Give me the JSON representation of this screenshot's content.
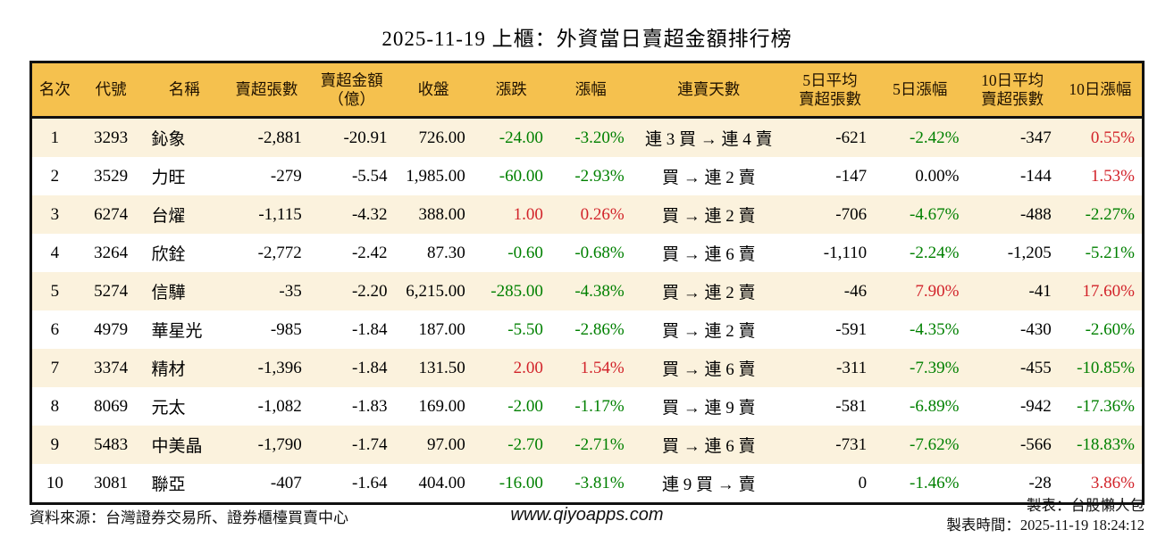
{
  "title": "2025-11-19 上櫃：外資當日賣超金額排行榜",
  "colors": {
    "up": "#d2232a",
    "down": "#008000",
    "header_bg": "#f5c14e",
    "row_alt_bg": "#fbf2dd",
    "border": "#111111"
  },
  "chart_data": {
    "type": "table",
    "title": "2025-11-19 上櫃：外資當日賣超金額排行榜",
    "columns": [
      {
        "key": "rank",
        "label": "名次",
        "align": "center"
      },
      {
        "key": "code",
        "label": "代號",
        "align": "center"
      },
      {
        "key": "name",
        "label": "名稱",
        "align": "left"
      },
      {
        "key": "sell_volume",
        "label": "賣超張數",
        "align": "right"
      },
      {
        "key": "sell_amount",
        "label": "賣超金額\n（億）",
        "align": "right"
      },
      {
        "key": "close",
        "label": "收盤",
        "align": "right"
      },
      {
        "key": "change",
        "label": "漲跌",
        "align": "right",
        "color_key": "change_color"
      },
      {
        "key": "change_pct",
        "label": "漲幅",
        "align": "right",
        "color_key": "change_pct_color"
      },
      {
        "key": "streak",
        "label": "連賣天數",
        "align": "center"
      },
      {
        "key": "avg5",
        "label": "5日平均\n賣超張數",
        "align": "right"
      },
      {
        "key": "pct5",
        "label": "5日漲幅",
        "align": "right",
        "color_key": "pct5_color"
      },
      {
        "key": "avg10",
        "label": "10日平均\n賣超張數",
        "align": "right"
      },
      {
        "key": "pct10",
        "label": "10日漲幅",
        "align": "right",
        "color_key": "pct10_color"
      }
    ],
    "rows": [
      {
        "rank": "1",
        "code": "3293",
        "name": "鈊象",
        "sell_volume": "-2,881",
        "sell_amount": "-20.91",
        "close": "726.00",
        "change": "-24.00",
        "change_color": "down",
        "change_pct": "-3.20%",
        "change_pct_color": "down",
        "streak": "連 3 買 → 連 4 賣",
        "avg5": "-621",
        "pct5": "-2.42%",
        "pct5_color": "down",
        "avg10": "-347",
        "pct10": "0.55%",
        "pct10_color": "up"
      },
      {
        "rank": "2",
        "code": "3529",
        "name": "力旺",
        "sell_volume": "-279",
        "sell_amount": "-5.54",
        "close": "1,985.00",
        "change": "-60.00",
        "change_color": "down",
        "change_pct": "-2.93%",
        "change_pct_color": "down",
        "streak": "買 → 連 2 賣",
        "avg5": "-147",
        "pct5": "0.00%",
        "pct5_color": "flat",
        "avg10": "-144",
        "pct10": "1.53%",
        "pct10_color": "up"
      },
      {
        "rank": "3",
        "code": "6274",
        "name": "台燿",
        "sell_volume": "-1,115",
        "sell_amount": "-4.32",
        "close": "388.00",
        "change": "1.00",
        "change_color": "up",
        "change_pct": "0.26%",
        "change_pct_color": "up",
        "streak": "買 → 連 2 賣",
        "avg5": "-706",
        "pct5": "-4.67%",
        "pct5_color": "down",
        "avg10": "-488",
        "pct10": "-2.27%",
        "pct10_color": "down"
      },
      {
        "rank": "4",
        "code": "3264",
        "name": "欣銓",
        "sell_volume": "-2,772",
        "sell_amount": "-2.42",
        "close": "87.30",
        "change": "-0.60",
        "change_color": "down",
        "change_pct": "-0.68%",
        "change_pct_color": "down",
        "streak": "買 → 連 6 賣",
        "avg5": "-1,110",
        "pct5": "-2.24%",
        "pct5_color": "down",
        "avg10": "-1,205",
        "pct10": "-5.21%",
        "pct10_color": "down"
      },
      {
        "rank": "5",
        "code": "5274",
        "name": "信驊",
        "sell_volume": "-35",
        "sell_amount": "-2.20",
        "close": "6,215.00",
        "change": "-285.00",
        "change_color": "down",
        "change_pct": "-4.38%",
        "change_pct_color": "down",
        "streak": "買 → 連 2 賣",
        "avg5": "-46",
        "pct5": "7.90%",
        "pct5_color": "up",
        "avg10": "-41",
        "pct10": "17.60%",
        "pct10_color": "up"
      },
      {
        "rank": "6",
        "code": "4979",
        "name": "華星光",
        "sell_volume": "-985",
        "sell_amount": "-1.84",
        "close": "187.00",
        "change": "-5.50",
        "change_color": "down",
        "change_pct": "-2.86%",
        "change_pct_color": "down",
        "streak": "買 → 連 2 賣",
        "avg5": "-591",
        "pct5": "-4.35%",
        "pct5_color": "down",
        "avg10": "-430",
        "pct10": "-2.60%",
        "pct10_color": "down"
      },
      {
        "rank": "7",
        "code": "3374",
        "name": "精材",
        "sell_volume": "-1,396",
        "sell_amount": "-1.84",
        "close": "131.50",
        "change": "2.00",
        "change_color": "up",
        "change_pct": "1.54%",
        "change_pct_color": "up",
        "streak": "買 → 連 6 賣",
        "avg5": "-311",
        "pct5": "-7.39%",
        "pct5_color": "down",
        "avg10": "-455",
        "pct10": "-10.85%",
        "pct10_color": "down"
      },
      {
        "rank": "8",
        "code": "8069",
        "name": "元太",
        "sell_volume": "-1,082",
        "sell_amount": "-1.83",
        "close": "169.00",
        "change": "-2.00",
        "change_color": "down",
        "change_pct": "-1.17%",
        "change_pct_color": "down",
        "streak": "買 → 連 9 賣",
        "avg5": "-581",
        "pct5": "-6.89%",
        "pct5_color": "down",
        "avg10": "-942",
        "pct10": "-17.36%",
        "pct10_color": "down"
      },
      {
        "rank": "9",
        "code": "5483",
        "name": "中美晶",
        "sell_volume": "-1,790",
        "sell_amount": "-1.74",
        "close": "97.00",
        "change": "-2.70",
        "change_color": "down",
        "change_pct": "-2.71%",
        "change_pct_color": "down",
        "streak": "買 → 連 6 賣",
        "avg5": "-731",
        "pct5": "-7.62%",
        "pct5_color": "down",
        "avg10": "-566",
        "pct10": "-18.83%",
        "pct10_color": "down"
      },
      {
        "rank": "10",
        "code": "3081",
        "name": "聯亞",
        "sell_volume": "-407",
        "sell_amount": "-1.64",
        "close": "404.00",
        "change": "-16.00",
        "change_color": "down",
        "change_pct": "-3.81%",
        "change_pct_color": "down",
        "streak": "連 9 買 → 賣",
        "avg5": "0",
        "pct5": "-1.46%",
        "pct5_color": "down",
        "avg10": "-28",
        "pct10": "3.86%",
        "pct10_color": "up"
      }
    ]
  },
  "footer": {
    "source": "資料來源：台灣證券交易所、證券櫃檯買賣中心",
    "website": "www.qiyoapps.com",
    "credit": "製表：台股懶人包",
    "generated": "製表時間：2025-11-19 18:24:12"
  }
}
